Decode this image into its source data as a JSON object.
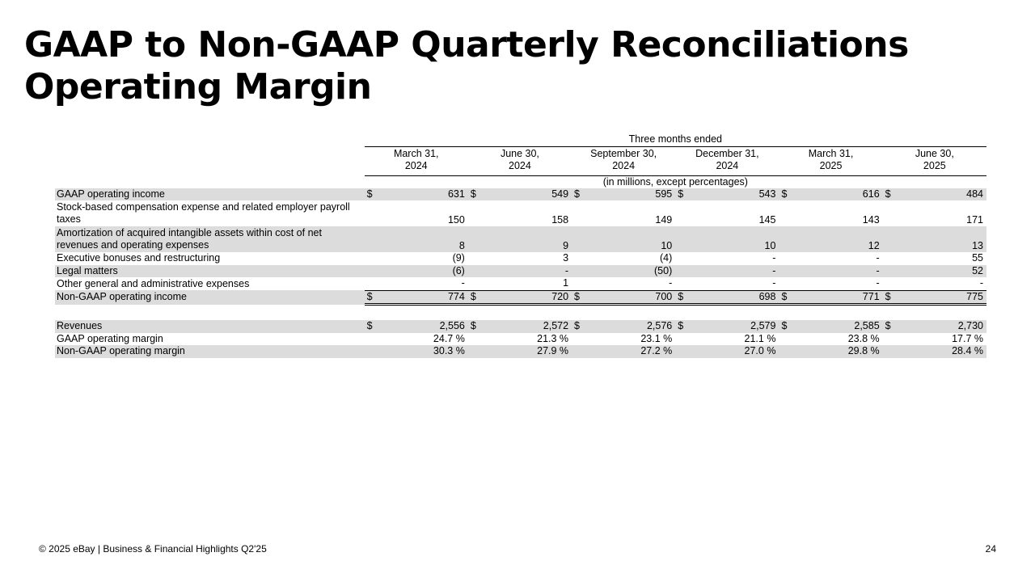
{
  "title": {
    "line1": "GAAP to Non-GAAP Quarterly Reconciliations",
    "line2": "Operating Margin"
  },
  "table": {
    "span_header": "Three months ended",
    "periods": [
      {
        "month": "March 31,",
        "year": "2024"
      },
      {
        "month": "June 30,",
        "year": "2024"
      },
      {
        "month": "September 30,",
        "year": "2024"
      },
      {
        "month": "December 31,",
        "year": "2024"
      },
      {
        "month": "March 31,",
        "year": "2025"
      },
      {
        "month": "June 30,",
        "year": "2025"
      }
    ],
    "unit_note": "(in millions, except percentages)",
    "rows": [
      {
        "label": "GAAP operating income",
        "dollar": true,
        "values": [
          "631",
          "549",
          "595",
          "543",
          "616",
          "484"
        ]
      },
      {
        "label": "Stock-based compensation expense and related employer payroll taxes",
        "dollar": false,
        "values": [
          "150",
          "158",
          "149",
          "145",
          "143",
          "171"
        ]
      },
      {
        "label": "Amortization of acquired intangible assets within cost of net revenues and operating expenses",
        "dollar": false,
        "values": [
          "8",
          "9",
          "10",
          "10",
          "12",
          "13"
        ]
      },
      {
        "label": "Executive bonuses and restructuring",
        "dollar": false,
        "values": [
          "(9)",
          "3",
          "(4)",
          "-",
          "-",
          "55"
        ]
      },
      {
        "label": "Legal matters",
        "dollar": false,
        "values": [
          "(6)",
          "-",
          "(50)",
          "-",
          "-",
          "52"
        ]
      },
      {
        "label": "Other general and administrative expenses",
        "dollar": false,
        "values": [
          "-",
          "1",
          "-",
          "-",
          "-",
          "-"
        ]
      },
      {
        "label": "Non-GAAP operating income",
        "dollar": true,
        "values": [
          "774",
          "720",
          "700",
          "698",
          "771",
          "775"
        ]
      },
      {
        "label": "Revenues",
        "dollar": true,
        "values": [
          "2,556",
          "2,572",
          "2,576",
          "2,579",
          "2,585",
          "2,730"
        ]
      },
      {
        "label": "GAAP operating margin",
        "dollar": false,
        "values": [
          "24.7 %",
          "21.3 %",
          "23.1 %",
          "21.1 %",
          "23.8 %",
          "17.7 %"
        ]
      },
      {
        "label": "Non-GAAP operating margin",
        "dollar": false,
        "values": [
          "30.3 %",
          "27.9 %",
          "27.2 %",
          "27.0 %",
          "29.8 %",
          "28.4 %"
        ]
      }
    ],
    "dollar_sign": "$"
  },
  "footer": {
    "copyright": "© 2025 eBay | Business & Financial Highlights Q2'25",
    "page_number": "24"
  }
}
